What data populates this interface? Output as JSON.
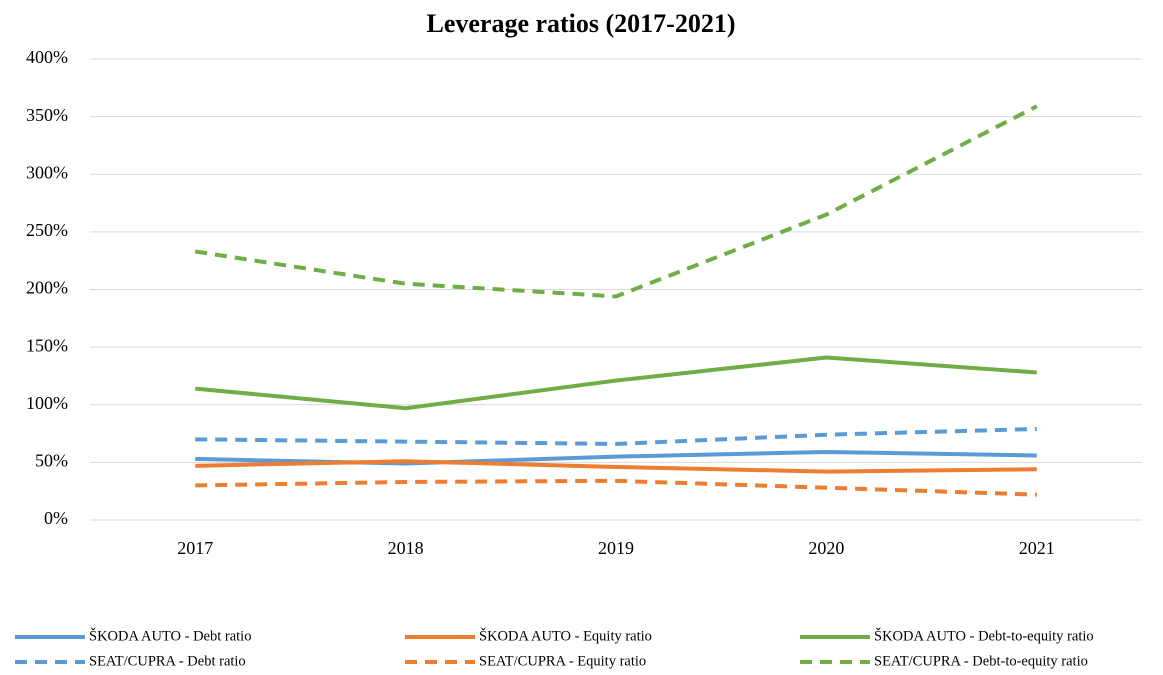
{
  "chart_data": {
    "type": "line",
    "title": "Leverage ratios (2017-2021)",
    "categories": [
      "2017",
      "2018",
      "2019",
      "2020",
      "2021"
    ],
    "series": [
      {
        "name": "ŠKODA AUTO - Debt ratio",
        "color": "#5b9bd5",
        "dashed": false,
        "values": [
          53,
          49,
          55,
          59,
          56
        ]
      },
      {
        "name": "ŠKODA AUTO - Equity ratio",
        "color": "#ed7d31",
        "dashed": false,
        "values": [
          47,
          51,
          46,
          42,
          44
        ]
      },
      {
        "name": "ŠKODA AUTO - Debt-to-equity ratio",
        "color": "#70ad47",
        "dashed": false,
        "values": [
          114,
          97,
          121,
          141,
          128
        ]
      },
      {
        "name": "SEAT/CUPRA - Debt ratio",
        "color": "#5b9bd5",
        "dashed": true,
        "values": [
          70,
          68,
          66,
          74,
          79
        ]
      },
      {
        "name": "SEAT/CUPRA - Equity ratio",
        "color": "#ed7d31",
        "dashed": true,
        "values": [
          30,
          33,
          34,
          28,
          22
        ]
      },
      {
        "name": "SEAT/CUPRA - Debt-to-equity ratio",
        "color": "#70ad47",
        "dashed": true,
        "values": [
          233,
          205,
          194,
          265,
          359
        ]
      }
    ],
    "ylim": [
      0,
      400
    ],
    "yticks": [
      {
        "value": 0,
        "label": "0%"
      },
      {
        "value": 50,
        "label": "50%"
      },
      {
        "value": 100,
        "label": "100%"
      },
      {
        "value": 150,
        "label": "150%"
      },
      {
        "value": 200,
        "label": "200%"
      },
      {
        "value": 250,
        "label": "250%"
      },
      {
        "value": 300,
        "label": "300%"
      },
      {
        "value": 350,
        "label": "350%"
      },
      {
        "value": 400,
        "label": "400%"
      }
    ],
    "grid": true,
    "legend": "bottom"
  }
}
